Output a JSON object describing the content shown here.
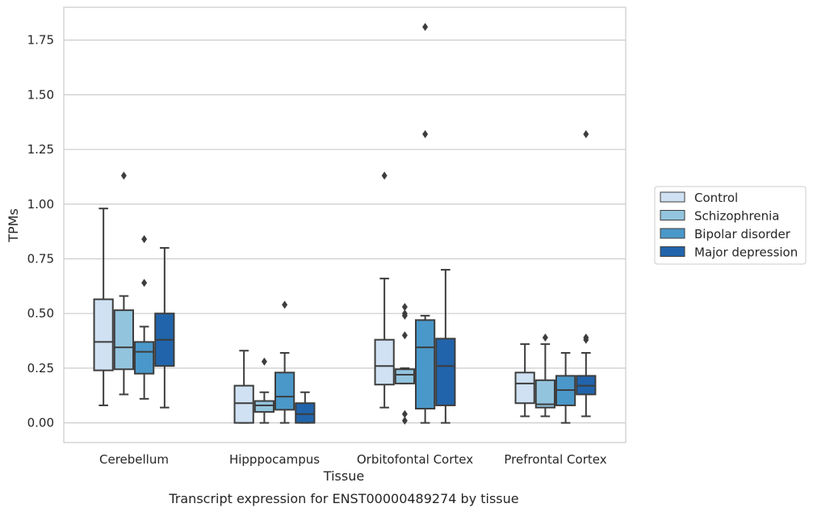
{
  "caption": "Transcript expression for ENST00000489274 by tissue",
  "chart_data": {
    "type": "box",
    "xlabel": "Tissue",
    "ylabel": "TPMs",
    "ylim": [
      -0.09,
      1.9
    ],
    "yticks": [
      0.0,
      0.25,
      0.5,
      0.75,
      1.0,
      1.25,
      1.5,
      1.75
    ],
    "ytick_labels": [
      "0.00",
      "0.25",
      "0.50",
      "0.75",
      "1.00",
      "1.25",
      "1.50",
      "1.75"
    ],
    "grid": "horizontal",
    "legend_position": "right",
    "categories": [
      "Cerebellum",
      "Hipppocampus",
      "Orbitofontal Cortex",
      "Prefrontal Cortex"
    ],
    "series": [
      {
        "name": "Control",
        "color": "#cfe1f2",
        "boxes": [
          {
            "whisker_low": 0.08,
            "q1": 0.24,
            "median": 0.37,
            "q3": 0.565,
            "whisker_high": 0.98,
            "outliers": []
          },
          {
            "whisker_low": 0.0,
            "q1": 0.0,
            "median": 0.09,
            "q3": 0.17,
            "whisker_high": 0.33,
            "outliers": []
          },
          {
            "whisker_low": 0.07,
            "q1": 0.175,
            "median": 0.26,
            "q3": 0.38,
            "whisker_high": 0.66,
            "outliers": [
              1.13
            ]
          },
          {
            "whisker_low": 0.03,
            "q1": 0.09,
            "median": 0.18,
            "q3": 0.23,
            "whisker_high": 0.36,
            "outliers": []
          }
        ]
      },
      {
        "name": "Schizophrenia",
        "color": "#93c4de",
        "boxes": [
          {
            "whisker_low": 0.13,
            "q1": 0.245,
            "median": 0.345,
            "q3": 0.515,
            "whisker_high": 0.58,
            "outliers": [
              1.13
            ]
          },
          {
            "whisker_low": 0.0,
            "q1": 0.05,
            "median": 0.08,
            "q3": 0.1,
            "whisker_high": 0.14,
            "outliers": [
              0.28
            ]
          },
          {
            "whisker_low": 0.18,
            "q1": 0.18,
            "median": 0.22,
            "q3": 0.245,
            "whisker_high": 0.25,
            "outliers": [
              0.53,
              0.5,
              0.49,
              0.4,
              0.04,
              0.01
            ]
          },
          {
            "whisker_low": 0.03,
            "q1": 0.07,
            "median": 0.085,
            "q3": 0.195,
            "whisker_high": 0.36,
            "outliers": [
              0.39
            ]
          }
        ]
      },
      {
        "name": "Bipolar disorder",
        "color": "#4a98c9",
        "boxes": [
          {
            "whisker_low": 0.11,
            "q1": 0.225,
            "median": 0.325,
            "q3": 0.37,
            "whisker_high": 0.44,
            "outliers": [
              0.84,
              0.64
            ]
          },
          {
            "whisker_low": 0.0,
            "q1": 0.06,
            "median": 0.12,
            "q3": 0.23,
            "whisker_high": 0.32,
            "outliers": [
              0.54
            ]
          },
          {
            "whisker_low": 0.0,
            "q1": 0.065,
            "median": 0.345,
            "q3": 0.47,
            "whisker_high": 0.49,
            "outliers": [
              1.81,
              1.32
            ]
          },
          {
            "whisker_low": 0.0,
            "q1": 0.08,
            "median": 0.15,
            "q3": 0.215,
            "whisker_high": 0.32,
            "outliers": []
          }
        ]
      },
      {
        "name": "Major depression",
        "color": "#2164ab",
        "boxes": [
          {
            "whisker_low": 0.07,
            "q1": 0.26,
            "median": 0.38,
            "q3": 0.5,
            "whisker_high": 0.8,
            "outliers": []
          },
          {
            "whisker_low": 0.0,
            "q1": 0.0,
            "median": 0.04,
            "q3": 0.09,
            "whisker_high": 0.14,
            "outliers": []
          },
          {
            "whisker_low": 0.0,
            "q1": 0.08,
            "median": 0.26,
            "q3": 0.385,
            "whisker_high": 0.7,
            "outliers": []
          },
          {
            "whisker_low": 0.03,
            "q1": 0.13,
            "median": 0.17,
            "q3": 0.215,
            "whisker_high": 0.32,
            "outliers": [
              1.32,
              0.39,
              0.38
            ]
          }
        ]
      }
    ]
  }
}
